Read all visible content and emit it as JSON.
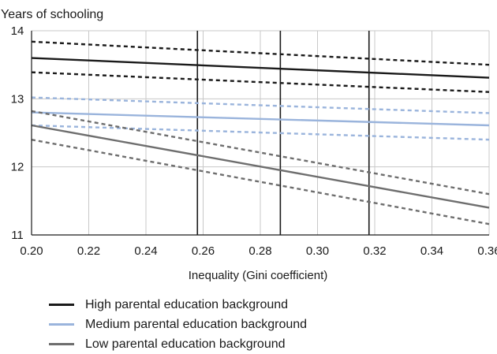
{
  "chart_data": {
    "type": "line",
    "ylabel": "Years of schooling",
    "xlabel": "Inequality (Gini coefficient)",
    "xlim": [
      0.2,
      0.36
    ],
    "ylim": [
      11,
      14
    ],
    "xticks": [
      "0.20",
      "0.22",
      "0.24",
      "0.26",
      "0.28",
      "0.30",
      "0.32",
      "0.34",
      "0.36"
    ],
    "yticks": [
      "11",
      "12",
      "13",
      "14"
    ],
    "grid": true,
    "vlines": [
      0.258,
      0.287,
      0.318
    ],
    "legend_position": "bottom",
    "series": [
      {
        "name": "High parental education background",
        "color": "#1a1a1a",
        "x": [
          0.2,
          0.36
        ],
        "y": [
          13.6,
          13.31
        ],
        "ci_upper": [
          13.84,
          13.5
        ],
        "ci_lower": [
          13.39,
          13.1
        ]
      },
      {
        "name": "Medium parental education background",
        "color": "#9ab4dc",
        "x": [
          0.2,
          0.36
        ],
        "y": [
          12.8,
          12.61
        ],
        "ci_upper": [
          13.02,
          12.79
        ],
        "ci_lower": [
          12.61,
          12.4
        ]
      },
      {
        "name": "Low parental education background",
        "color": "#6e6e6e",
        "x": [
          0.2,
          0.36
        ],
        "y": [
          12.61,
          11.4
        ],
        "ci_upper": [
          12.82,
          11.6
        ],
        "ci_lower": [
          12.4,
          11.16
        ]
      }
    ]
  }
}
